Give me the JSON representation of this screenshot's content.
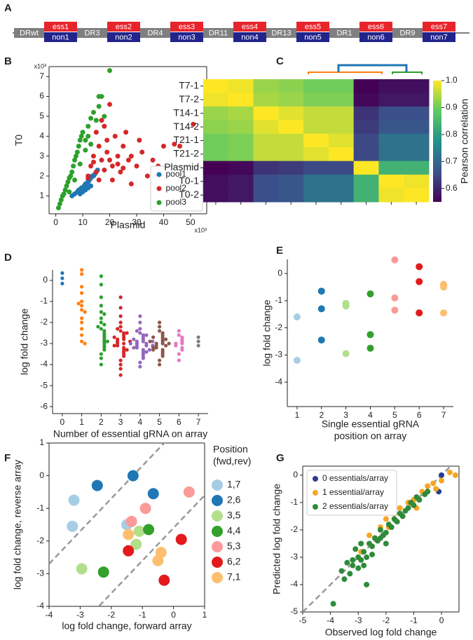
{
  "diagram": {
    "panel": "A",
    "repeats": [
      "DRwt",
      "DR3",
      "DR4",
      "DR11",
      "DR13",
      "DR1",
      "DR9"
    ],
    "spacers": [
      {
        "ess": "ess1",
        "non": "non1"
      },
      {
        "ess": "ess2",
        "non": "non2"
      },
      {
        "ess": "ess3",
        "non": "non3"
      },
      {
        "ess": "ess4",
        "non": "non4"
      },
      {
        "ess": "ess5",
        "non": "non5"
      },
      {
        "ess": "ess6",
        "non": "non6"
      },
      {
        "ess": "ess7",
        "non": "non7"
      }
    ]
  },
  "chart_data": [
    {
      "panel": "B",
      "type": "scatter",
      "xlabel": "Plasmid",
      "ylabel": "T0",
      "x_multiplier": "x10³",
      "y_multiplier": "x10³",
      "xlim": [
        -2.5,
        56
      ],
      "ylim": [
        0.1,
        7.5
      ],
      "xticks": [
        0,
        10,
        20,
        30,
        40,
        50
      ],
      "yticks": [
        1,
        2,
        3,
        4,
        5,
        6,
        7
      ],
      "spines": [
        "left",
        "bottom",
        "right",
        "top"
      ],
      "legend": "lower right",
      "series": [
        {
          "name": "pool1",
          "color": "#1f77b4",
          "x": [
            6,
            7,
            8,
            8.5,
            9,
            9.5,
            10,
            10.5,
            11,
            11,
            11.5,
            12,
            12,
            12.5,
            13,
            13.5,
            14,
            14.5,
            15,
            15.5,
            9,
            10,
            11,
            12,
            13
          ],
          "values": [
            1.0,
            1.1,
            1.2,
            1.3,
            1.3,
            1.4,
            1.4,
            1.5,
            1.5,
            1.6,
            1.6,
            1.7,
            1.8,
            1.8,
            1.9,
            2.0,
            2.0,
            2.1,
            2.2,
            2.3,
            1.1,
            1.2,
            1.3,
            1.4,
            1.5
          ]
        },
        {
          "name": "pool2",
          "color": "#d62728",
          "x": [
            12,
            13,
            14,
            15,
            16,
            17,
            18,
            19,
            20,
            21,
            22,
            23,
            24,
            25,
            26,
            27,
            28,
            30,
            32,
            34,
            36,
            38,
            40,
            44,
            46,
            51,
            15,
            17,
            19,
            21,
            23,
            25,
            28,
            31,
            12,
            14,
            16,
            18,
            20
          ],
          "values": [
            2.0,
            2.5,
            3.0,
            2.2,
            3.5,
            2.8,
            4.5,
            3.2,
            5.6,
            2.5,
            4.0,
            3.0,
            2.2,
            3.5,
            4.2,
            2.8,
            3.0,
            2.5,
            3.2,
            2.0,
            2.8,
            2.5,
            3.5,
            3.6,
            3.5,
            4.6,
            4.2,
            4.8,
            3.8,
            1.8,
            2.6,
            2.4,
            1.6,
            3.8,
            1.9,
            2.7,
            1.8,
            2.3,
            2.8
          ]
        },
        {
          "name": "pool3",
          "color": "#2ca02c",
          "x": [
            1,
            1.5,
            2,
            2.5,
            3,
            3.5,
            4,
            4.5,
            5,
            5.5,
            6,
            6.5,
            7,
            7.5,
            8,
            8.5,
            9,
            9.5,
            10,
            11,
            12,
            13,
            14,
            15,
            16,
            17,
            18,
            20,
            5,
            7,
            9,
            11,
            13,
            16,
            12
          ],
          "values": [
            0.4,
            0.6,
            0.8,
            1.0,
            1.1,
            1.3,
            1.5,
            1.7,
            1.9,
            2.0,
            2.2,
            2.5,
            2.8,
            3.0,
            3.2,
            3.5,
            3.8,
            4.0,
            4.2,
            3.8,
            4.5,
            4.9,
            5.2,
            4.8,
            5.5,
            6.0,
            5.0,
            7.3,
            1.2,
            1.8,
            2.6,
            3.3,
            3.6,
            6.0,
            4.0
          ]
        }
      ]
    },
    {
      "panel": "C",
      "type": "heatmap",
      "colormap": "viridis",
      "categories": [
        "T7-1",
        "T7-2",
        "T14-1",
        "T14-2",
        "T21-1",
        "T21-2",
        "Plasmid",
        "T0-1",
        "T0-2"
      ],
      "values": [
        [
          1.0,
          0.99,
          0.93,
          0.92,
          0.9,
          0.9,
          0.55,
          0.57,
          0.57
        ],
        [
          0.99,
          1.0,
          0.94,
          0.93,
          0.91,
          0.91,
          0.56,
          0.58,
          0.58
        ],
        [
          0.93,
          0.94,
          1.0,
          0.98,
          0.96,
          0.96,
          0.62,
          0.66,
          0.66
        ],
        [
          0.92,
          0.93,
          0.98,
          1.0,
          0.96,
          0.96,
          0.63,
          0.67,
          0.67
        ],
        [
          0.9,
          0.91,
          0.96,
          0.96,
          1.0,
          0.98,
          0.65,
          0.72,
          0.72
        ],
        [
          0.9,
          0.91,
          0.96,
          0.96,
          0.98,
          1.0,
          0.65,
          0.72,
          0.72
        ],
        [
          0.55,
          0.56,
          0.62,
          0.63,
          0.65,
          0.65,
          1.0,
          0.84,
          0.84
        ],
        [
          0.57,
          0.58,
          0.66,
          0.67,
          0.72,
          0.72,
          0.84,
          1.0,
          0.99
        ],
        [
          0.57,
          0.58,
          0.66,
          0.67,
          0.72,
          0.72,
          0.84,
          0.99,
          1.0
        ]
      ],
      "clim": [
        0.55,
        1.0
      ],
      "cticks": [
        0.6,
        0.7,
        0.8,
        0.9,
        {
          "value": 1,
          "label": "1.0"
        }
      ],
      "colorbar_label": "Pearson correlation"
    },
    {
      "panel": "D",
      "type": "strip",
      "xlabel": "Number of essential gRNA on array",
      "ylabel": "log fold change",
      "xlim": [
        -0.5,
        7.5
      ],
      "ylim": [
        -6.33,
        0.5
      ],
      "xticks": [
        0,
        1,
        2,
        3,
        4,
        5,
        6,
        7
      ],
      "yticks": [
        0,
        -1,
        -2,
        -3,
        -4,
        -5,
        -6
      ],
      "spines": [
        "left",
        "bottom"
      ],
      "series": [
        {
          "color": "#1f77b4",
          "x": 0,
          "values": [
            0.35,
            0.1,
            -0.15
          ]
        },
        {
          "color": "#ff7f0e",
          "x": 1,
          "values": [
            0.5,
            0.3,
            -0.3,
            -0.6,
            -1.0,
            -1.2,
            -1.4,
            -1.5,
            -1.8,
            -2.0,
            -2.3,
            -2.6,
            -2.9,
            -3.0,
            -1.1
          ]
        },
        {
          "color": "#2ca02c",
          "x": 2,
          "values": [
            0.2,
            -0.2,
            -0.8,
            -1.2,
            -1.5,
            -1.8,
            -2.0,
            -2.1,
            -2.3,
            -2.4,
            -2.5,
            -2.6,
            -2.7,
            -2.8,
            -2.9,
            -3.0,
            -3.1,
            -3.2,
            -3.3,
            -3.5,
            -3.7,
            -4.0,
            -2.2,
            -1.6,
            -2.9
          ]
        },
        {
          "color": "#d62728",
          "x": 3,
          "values": [
            -0.8,
            -1.3,
            -1.7,
            -2.0,
            -2.2,
            -2.4,
            -2.5,
            -2.6,
            -2.7,
            -2.8,
            -2.8,
            -2.9,
            -3.0,
            -3.0,
            -3.1,
            -3.2,
            -3.3,
            -3.4,
            -3.5,
            -3.6,
            -3.8,
            -4.0,
            -4.2,
            -4.5,
            -2.9,
            -2.7,
            -3.1,
            -2.5,
            -3.3,
            -2.3
          ]
        },
        {
          "color": "#9467bd",
          "x": 4,
          "values": [
            -1.7,
            -2.0,
            -2.3,
            -2.5,
            -2.6,
            -2.7,
            -2.8,
            -2.9,
            -2.9,
            -3.0,
            -3.0,
            -3.1,
            -3.1,
            -3.2,
            -3.3,
            -3.4,
            -3.5,
            -3.6,
            -3.7,
            -3.9,
            -4.1,
            -2.8,
            -3.0,
            -3.2,
            -2.6,
            -3.4,
            -2.4,
            -3.1,
            -2.9,
            -3.3
          ]
        },
        {
          "color": "#8c564b",
          "x": 5,
          "values": [
            -2.0,
            -2.2,
            -2.4,
            -2.5,
            -2.6,
            -2.7,
            -2.8,
            -2.9,
            -3.0,
            -3.0,
            -3.1,
            -3.1,
            -3.2,
            -3.3,
            -3.4,
            -3.5,
            -3.6,
            -3.8,
            -4.0,
            -2.8,
            -3.0,
            -2.7,
            -3.2,
            -2.9,
            -3.3
          ]
        },
        {
          "color": "#e377c2",
          "x": 6,
          "values": [
            -2.4,
            -2.6,
            -2.7,
            -2.8,
            -2.9,
            -3.0,
            -3.0,
            -3.1,
            -3.2,
            -3.3,
            -3.5,
            -3.8
          ]
        },
        {
          "color": "#7f7f7f",
          "x": 7,
          "values": [
            -2.7,
            -2.9,
            -3.1
          ]
        }
      ]
    },
    {
      "panel": "E",
      "type": "scatter",
      "xlabel": [
        "Single essential gRNA",
        "position on array"
      ],
      "ylabel": "log fold change",
      "xlim": [
        0.6,
        7.4
      ],
      "ylim": [
        -4.9,
        0.52
      ],
      "xticks": [
        1,
        2,
        3,
        4,
        5,
        6,
        7
      ],
      "yticks": [
        0,
        -1,
        -2,
        -3,
        -4
      ],
      "spines": [
        "left",
        "bottom"
      ],
      "series": [
        {
          "color": "#a6cee3",
          "x": [
            1,
            1
          ],
          "values": [
            -1.6,
            -3.2
          ]
        },
        {
          "color": "#1f78b4",
          "x": [
            2,
            2,
            2
          ],
          "values": [
            -0.65,
            -1.3,
            -2.45
          ]
        },
        {
          "color": "#b2df8a",
          "x": [
            3,
            3,
            3
          ],
          "values": [
            -1.1,
            -1.2,
            -2.95
          ]
        },
        {
          "color": "#33a02c",
          "x": [
            4,
            4,
            4
          ],
          "values": [
            -0.75,
            -2.25,
            -2.75
          ]
        },
        {
          "color": "#fb9a99",
          "x": [
            5,
            5,
            5
          ],
          "values": [
            0.5,
            -0.9,
            -1.35
          ]
        },
        {
          "color": "#e31a1c",
          "x": [
            6,
            6,
            6
          ],
          "values": [
            0.25,
            -0.3,
            -1.45
          ]
        },
        {
          "color": "#fdbf6f",
          "x": [
            7,
            7,
            7,
            7
          ],
          "values": [
            -0.4,
            -0.5,
            -1.45,
            -0.45
          ]
        }
      ]
    },
    {
      "panel": "F",
      "type": "scatter",
      "xlabel": "log fold change, forward array",
      "ylabel": "log fold change, reverse array",
      "xlim": [
        -4,
        1
      ],
      "ylim": [
        -4,
        1
      ],
      "xticks": [
        -4,
        -3,
        -2,
        -1,
        0,
        1
      ],
      "yticks": [
        1,
        0,
        -1,
        -2,
        -3,
        -4
      ],
      "spines": [
        "left",
        "bottom",
        "right",
        "top"
      ],
      "diagonals": [
        1.3,
        -1.6
      ],
      "legend": "outside right",
      "legend_title": [
        "Position",
        "(fwd,rev)"
      ],
      "series": [
        {
          "name": "1,7",
          "color": "#a6cee3",
          "x": [
            -3.2,
            -3.25,
            -1.5
          ],
          "values": [
            -0.75,
            -1.55,
            -1.5
          ]
        },
        {
          "name": "2,6",
          "color": "#1f78b4",
          "x": [
            -2.45,
            -1.3,
            -0.65
          ],
          "values": [
            -0.3,
            0.0,
            -0.55
          ]
        },
        {
          "name": "3,5",
          "color": "#b2df8a",
          "x": [
            -2.95,
            -1.1,
            -1.2
          ],
          "values": [
            -2.85,
            -1.7,
            -2.1
          ]
        },
        {
          "name": "4,4",
          "color": "#33a02c",
          "x": [
            -2.25,
            -0.8
          ],
          "values": [
            -2.95,
            -1.65
          ]
        },
        {
          "name": "5,3",
          "color": "#fb9a99",
          "x": [
            0.5,
            -0.9,
            -1.35
          ],
          "values": [
            -0.5,
            -1.0,
            -1.4
          ]
        },
        {
          "name": "6,2",
          "color": "#e31a1c",
          "x": [
            0.25,
            -0.3,
            -1.45
          ],
          "values": [
            -1.95,
            -3.2,
            -2.3
          ]
        },
        {
          "name": "7,1",
          "color": "#fdbf6f",
          "x": [
            -0.4,
            -0.5,
            -1.45
          ],
          "values": [
            -2.35,
            -2.6,
            -1.8
          ]
        }
      ]
    },
    {
      "panel": "G",
      "type": "scatter",
      "xlabel": "Observed log fold change",
      "ylabel": "Predicted log fold change",
      "xlim": [
        -5,
        0.63
      ],
      "ylim": [
        -5,
        0.33
      ],
      "xticks": [
        -5,
        -4,
        -3,
        -2,
        -1,
        0
      ],
      "yticks": [
        0,
        -1,
        -2,
        -3,
        -4,
        -5
      ],
      "spines": [
        "left",
        "bottom",
        "right",
        "top"
      ],
      "diagonals": [
        0
      ],
      "legend": "upper left",
      "series": [
        {
          "name": "0 essentials/array",
          "color": "#2b3d8f",
          "x": [
            0.0,
            -0.1
          ],
          "values": [
            0.0,
            -0.6
          ]
        },
        {
          "name": "1 essential/array",
          "color": "#f5a623",
          "x": [
            -3.0,
            -2.9,
            -2.6,
            -2.4,
            -2.2,
            -2.0,
            -1.9,
            -1.7,
            -1.5,
            -1.4,
            -1.2,
            -1.0,
            -0.9,
            -0.7,
            -0.5,
            -0.3,
            -0.2,
            0.0,
            0.3,
            0.5
          ],
          "values": [
            -3.0,
            -2.8,
            -2.2,
            -2.3,
            -1.9,
            -1.6,
            -1.9,
            -1.4,
            -1.2,
            -1.5,
            -1.0,
            -0.9,
            -1.2,
            -0.6,
            -0.4,
            -0.3,
            -0.5,
            -0.2,
            0.1,
            0.0
          ]
        },
        {
          "name": "2 essentials/array",
          "color": "#2e8b3a",
          "x": [
            -3.9,
            -3.6,
            -3.5,
            -3.4,
            -3.3,
            -3.2,
            -3.1,
            -3.0,
            -3.0,
            -2.9,
            -2.8,
            -2.8,
            -2.7,
            -2.6,
            -2.5,
            -2.5,
            -2.4,
            -2.3,
            -2.2,
            -2.1,
            -2.0,
            -2.0,
            -1.9,
            -1.8,
            -1.7,
            -1.6,
            -1.5,
            -1.4,
            -1.3,
            -1.2,
            -1.1,
            -1.0,
            -0.9,
            -0.8,
            -0.6,
            -0.5,
            -2.9,
            -3.2,
            -2.7,
            -2.2
          ],
          "values": [
            -4.7,
            -3.5,
            -3.8,
            -3.2,
            -3.6,
            -3.3,
            -2.7,
            -3.4,
            -3.0,
            -3.1,
            -2.8,
            -3.3,
            -4.0,
            -2.5,
            -2.6,
            -2.9,
            -2.3,
            -2.4,
            -2.0,
            -2.2,
            -2.1,
            -2.5,
            -1.8,
            -1.9,
            -1.6,
            -1.7,
            -1.4,
            -1.5,
            -1.3,
            -1.2,
            -1.0,
            -1.1,
            -0.8,
            -0.9,
            -0.7,
            -0.6,
            -2.5,
            -3.1,
            -3.0,
            -2.3
          ]
        }
      ]
    }
  ]
}
